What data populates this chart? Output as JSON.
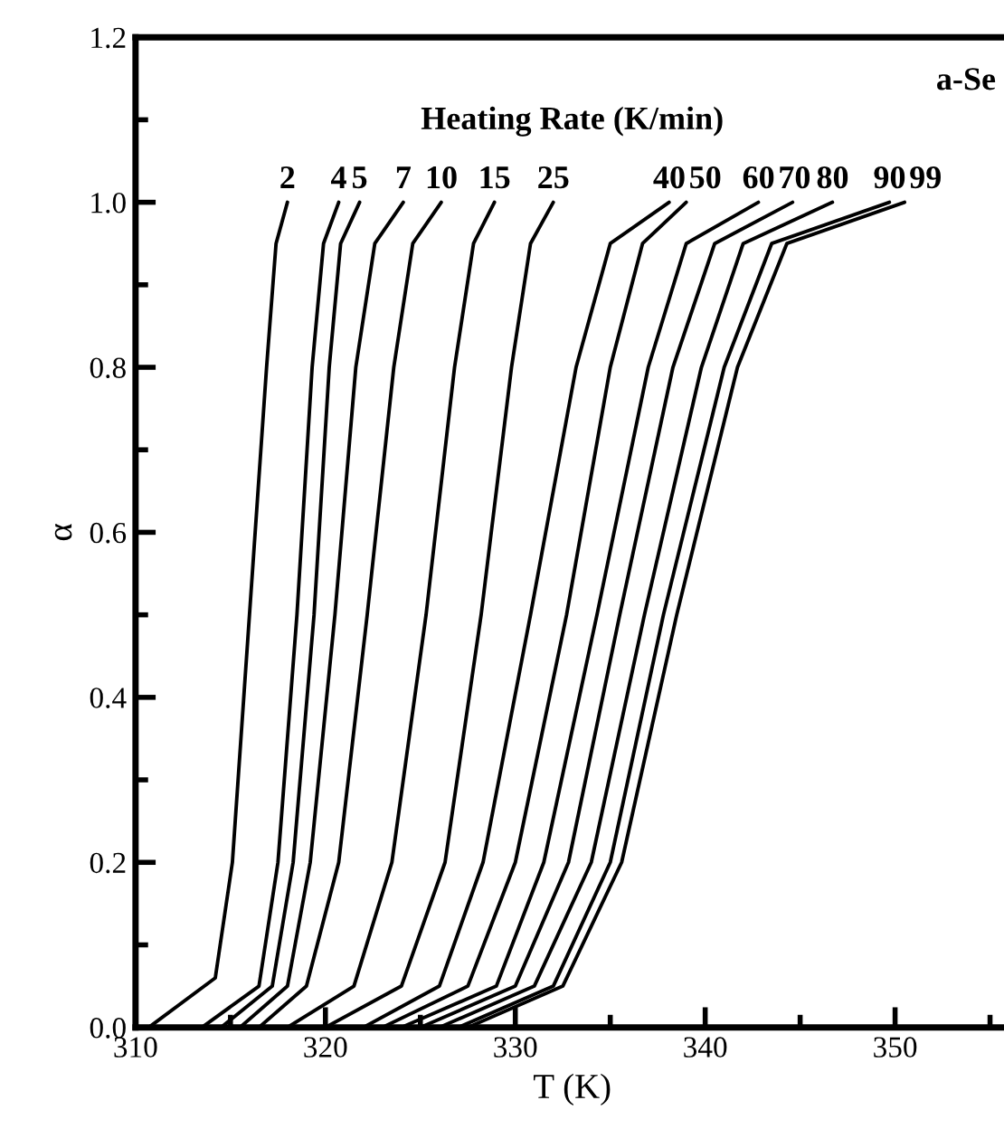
{
  "chart_data": {
    "type": "line",
    "xlabel": "T (K)",
    "ylabel": "α",
    "legend_title": "Heating Rate (K/min)",
    "annotations": [
      "a-Se"
    ],
    "xlim": [
      310,
      356
    ],
    "ylim": [
      0,
      1.2
    ],
    "xticks": [
      310,
      {
        "value": 315,
        "label": null
      },
      320,
      {
        "value": 325,
        "label": null
      },
      330,
      {
        "value": 335,
        "label": null
      },
      340,
      {
        "value": 345,
        "label": null
      },
      350,
      {
        "value": 355,
        "label": null
      }
    ],
    "yticks": [
      {
        "value": 0,
        "label": "0.0"
      },
      {
        "value": 0.1,
        "label": null
      },
      {
        "value": 0.2,
        "label": "0.2"
      },
      {
        "value": 0.3,
        "label": null
      },
      {
        "value": 0.4,
        "label": "0.4"
      },
      {
        "value": 0.5,
        "label": null
      },
      {
        "value": 0.6,
        "label": "0.6"
      },
      {
        "value": 0.7,
        "label": null
      },
      {
        "value": 0.8,
        "label": "0.8"
      },
      {
        "value": 0.9,
        "label": null
      },
      {
        "value": 1.0,
        "label": "1.0"
      },
      {
        "value": 1.1,
        "label": null
      },
      {
        "value": 1.2,
        "label": "1.2"
      }
    ],
    "grid": false,
    "legend": false,
    "marker": "none",
    "line_style": "solid",
    "series": [
      {
        "name": "2",
        "color": "#000000",
        "x": [
          310.7,
          314.2,
          315.1,
          316.0,
          316.9,
          317.4,
          318.0
        ],
        "values": [
          0,
          0.06,
          0.2,
          0.5,
          0.8,
          0.95,
          1.0
        ]
      },
      {
        "name": "4",
        "color": "#000000",
        "x": [
          313.5,
          316.5,
          317.5,
          318.5,
          319.3,
          319.9,
          320.7
        ],
        "values": [
          0,
          0.05,
          0.2,
          0.5,
          0.8,
          0.95,
          1.0
        ]
      },
      {
        "name": "5",
        "color": "#000000",
        "x": [
          314.5,
          317.2,
          318.3,
          319.4,
          320.2,
          320.8,
          321.8
        ],
        "values": [
          0,
          0.05,
          0.2,
          0.5,
          0.8,
          0.95,
          1.0
        ]
      },
      {
        "name": "7",
        "color": "#000000",
        "x": [
          315.5,
          318.0,
          319.2,
          320.5,
          321.6,
          322.6,
          324.1
        ],
        "values": [
          0,
          0.05,
          0.2,
          0.5,
          0.8,
          0.95,
          1.0
        ]
      },
      {
        "name": "10",
        "color": "#000000",
        "x": [
          316.5,
          319.0,
          320.7,
          322.2,
          323.6,
          324.6,
          326.1
        ],
        "values": [
          0,
          0.05,
          0.2,
          0.5,
          0.8,
          0.95,
          1.0
        ]
      },
      {
        "name": "15",
        "color": "#000000",
        "x": [
          318.0,
          321.5,
          323.5,
          325.3,
          326.8,
          327.8,
          328.9
        ],
        "values": [
          0,
          0.05,
          0.2,
          0.5,
          0.8,
          0.95,
          1.0
        ]
      },
      {
        "name": "25",
        "color": "#000000",
        "x": [
          320.0,
          324.0,
          326.3,
          328.2,
          329.8,
          330.8,
          332.0
        ],
        "values": [
          0,
          0.05,
          0.2,
          0.5,
          0.8,
          0.95,
          1.0
        ]
      },
      {
        "name": "40",
        "color": "#000000",
        "x": [
          322.0,
          326.0,
          328.3,
          330.8,
          333.2,
          335.0,
          338.1
        ],
        "values": [
          0,
          0.05,
          0.2,
          0.5,
          0.8,
          0.95,
          1.0
        ]
      },
      {
        "name": "50",
        "color": "#000000",
        "x": [
          323.0,
          327.5,
          330.0,
          332.7,
          335.0,
          336.7,
          339.0
        ],
        "values": [
          0,
          0.05,
          0.2,
          0.5,
          0.8,
          0.95,
          1.0
        ]
      },
      {
        "name": "60",
        "color": "#000000",
        "x": [
          324.0,
          329.0,
          331.5,
          334.3,
          337.0,
          339.0,
          342.8
        ],
        "values": [
          0,
          0.05,
          0.2,
          0.5,
          0.8,
          0.95,
          1.0
        ]
      },
      {
        "name": "70",
        "color": "#000000",
        "x": [
          325.0,
          330.0,
          332.8,
          335.5,
          338.3,
          340.5,
          344.6
        ],
        "values": [
          0,
          0.05,
          0.2,
          0.5,
          0.8,
          0.95,
          1.0
        ]
      },
      {
        "name": "80",
        "color": "#000000",
        "x": [
          326.0,
          331.0,
          334.0,
          336.8,
          339.8,
          342.0,
          346.7
        ],
        "values": [
          0,
          0.05,
          0.2,
          0.5,
          0.8,
          0.95,
          1.0
        ]
      },
      {
        "name": "90",
        "color": "#000000",
        "x": [
          327.0,
          332.0,
          335.0,
          337.8,
          341.0,
          343.5,
          349.7
        ],
        "values": [
          0,
          0.05,
          0.2,
          0.5,
          0.8,
          0.95,
          1.0
        ]
      },
      {
        "name": "99",
        "color": "#000000",
        "x": [
          327.5,
          332.5,
          335.6,
          338.5,
          341.7,
          344.3,
          350.5
        ],
        "values": [
          0,
          0.05,
          0.2,
          0.5,
          0.8,
          0.95,
          1.0
        ]
      }
    ]
  }
}
